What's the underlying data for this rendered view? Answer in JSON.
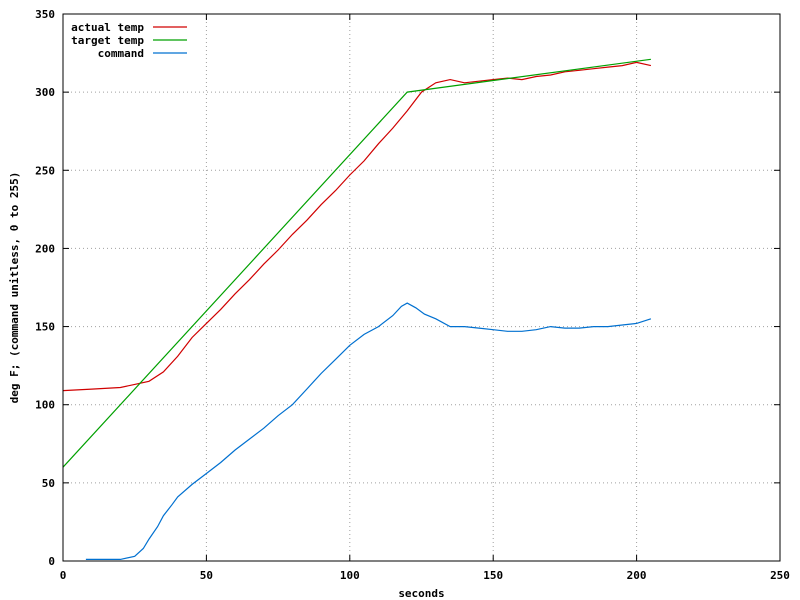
{
  "chart_data": {
    "type": "line",
    "title": "",
    "xlabel": "seconds",
    "ylabel": "deg F; (command unitless, 0 to 255)",
    "xlim": [
      0,
      250
    ],
    "ylim": [
      0,
      350
    ],
    "xticks": [
      0,
      50,
      100,
      150,
      200,
      250
    ],
    "yticks": [
      0,
      50,
      100,
      150,
      200,
      250,
      300,
      350
    ],
    "grid": true,
    "legend_position": "top-left",
    "series": [
      {
        "name": "actual temp",
        "color": "#d00000",
        "x": [
          0,
          10,
          20,
          25,
          30,
          35,
          40,
          45,
          50,
          55,
          60,
          65,
          70,
          75,
          80,
          85,
          90,
          95,
          100,
          105,
          110,
          115,
          120,
          125,
          130,
          135,
          140,
          145,
          150,
          155,
          160,
          165,
          170,
          175,
          180,
          185,
          190,
          195,
          200,
          205
        ],
        "y": [
          109,
          110,
          111,
          113,
          115,
          121,
          131,
          143,
          152,
          161,
          171,
          180,
          190,
          199,
          209,
          218,
          228,
          237,
          247,
          256,
          267,
          277,
          288,
          300,
          306,
          308,
          306,
          307,
          308,
          309,
          308,
          310,
          311,
          313,
          314,
          315,
          316,
          317,
          319,
          317
        ]
      },
      {
        "name": "target temp",
        "color": "#00a000",
        "x": [
          0,
          120,
          205
        ],
        "y": [
          60,
          300,
          321
        ]
      },
      {
        "name": "command",
        "color": "#0070d0",
        "x": [
          8,
          15,
          20,
          25,
          28,
          30,
          33,
          35,
          38,
          40,
          45,
          50,
          55,
          60,
          65,
          70,
          75,
          80,
          85,
          90,
          95,
          100,
          105,
          110,
          115,
          118,
          120,
          123,
          126,
          130,
          135,
          140,
          145,
          150,
          155,
          160,
          165,
          170,
          175,
          180,
          185,
          190,
          195,
          200,
          205
        ],
        "y": [
          1,
          1,
          1,
          3,
          8,
          14,
          22,
          29,
          36,
          41,
          49,
          56,
          63,
          71,
          78,
          85,
          93,
          100,
          110,
          120,
          129,
          138,
          145,
          150,
          157,
          163,
          165,
          162,
          158,
          155,
          150,
          150,
          149,
          148,
          147,
          147,
          148,
          150,
          149,
          149,
          150,
          150,
          151,
          152,
          155
        ]
      }
    ]
  }
}
